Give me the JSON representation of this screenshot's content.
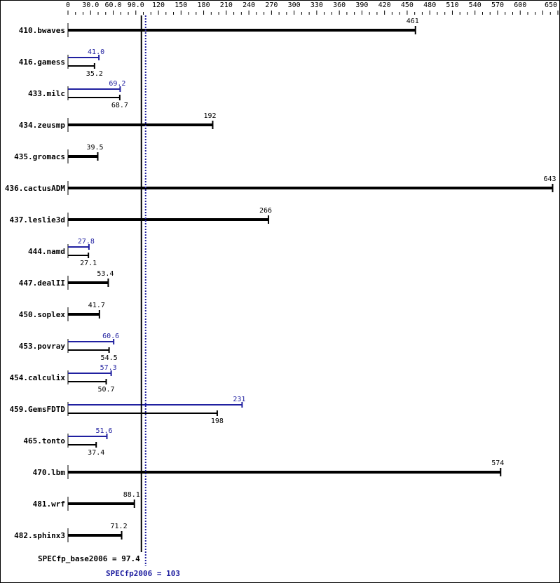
{
  "chart_data": {
    "type": "bar",
    "orientation": "horizontal",
    "xlim": [
      0,
      650
    ],
    "tick_labels": [
      "0",
      "30.0",
      "60.0",
      "90.0",
      "120",
      "150",
      "180",
      "210",
      "240",
      "270",
      "300",
      "330",
      "360",
      "390",
      "420",
      "450",
      "480",
      "510",
      "540",
      "570",
      "600",
      "650"
    ],
    "tick_values": [
      0,
      30,
      60,
      90,
      120,
      150,
      180,
      210,
      240,
      270,
      300,
      330,
      360,
      390,
      420,
      450,
      480,
      510,
      540,
      570,
      600,
      650
    ],
    "colors": {
      "base": "#000000",
      "peak": "#2020a0"
    },
    "categories": [
      "410.bwaves",
      "416.gamess",
      "433.milc",
      "434.zeusmp",
      "435.gromacs",
      "436.cactusADM",
      "437.leslie3d",
      "444.namd",
      "447.dealII",
      "450.soplex",
      "453.povray",
      "454.calculix",
      "459.GemsFDTD",
      "465.tonto",
      "470.lbm",
      "481.wrf",
      "482.sphinx3"
    ],
    "series": [
      {
        "name": "SPECfp_base2006",
        "values": [
          461,
          35.2,
          68.7,
          192,
          39.5,
          643,
          266,
          27.1,
          53.4,
          41.7,
          54.5,
          50.7,
          198,
          37.4,
          574,
          88.1,
          71.2
        ],
        "labels": [
          "461",
          "35.2",
          "68.7",
          "192",
          "39.5",
          "643",
          "266",
          "27.1",
          "53.4",
          "41.7",
          "54.5",
          "50.7",
          "198",
          "37.4",
          "574",
          "88.1",
          "71.2"
        ]
      },
      {
        "name": "SPECfp2006",
        "values": [
          null,
          41.0,
          69.2,
          null,
          null,
          null,
          null,
          27.8,
          null,
          null,
          60.6,
          57.3,
          231,
          51.6,
          null,
          null,
          null
        ],
        "labels": [
          null,
          "41.0",
          "69.2",
          null,
          null,
          null,
          null,
          "27.8",
          null,
          null,
          "60.6",
          "57.3",
          "231",
          "51.6",
          null,
          null,
          null
        ]
      }
    ],
    "reference_lines": [
      {
        "label": "SPECfp_base2006 = 97.4",
        "value": 97.4,
        "style": "solid",
        "color": "#000000"
      },
      {
        "label": "SPECfp2006 = 103",
        "value": 103,
        "style": "dotted",
        "color": "#2020a0"
      }
    ]
  }
}
